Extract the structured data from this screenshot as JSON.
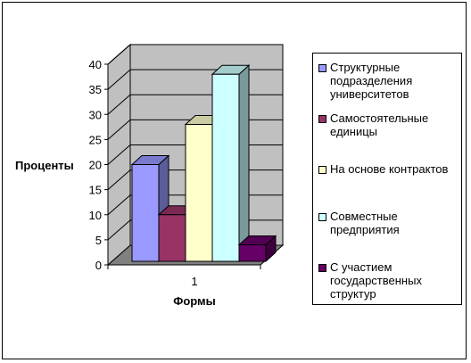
{
  "chart_data": {
    "type": "bar",
    "categories": [
      "1"
    ],
    "series": [
      {
        "name": "Структурные подразделения университетов",
        "values": [
          20
        ],
        "color": "#9999FF"
      },
      {
        "name": "Самостоятельные единицы",
        "values": [
          10
        ],
        "color": "#993366"
      },
      {
        "name": "На основе контрактов",
        "values": [
          28
        ],
        "color": "#FFFFCC"
      },
      {
        "name": "Совместные предприятия",
        "values": [
          38
        ],
        "color": "#CCFFFF"
      },
      {
        "name": "С участием государственных структур",
        "values": [
          4
        ],
        "color": "#660066"
      }
    ],
    "xlabel": "Формы",
    "ylabel": "Проценты",
    "ylim": [
      0,
      40
    ],
    "yticks": [
      "0",
      "5",
      "10",
      "15",
      "20",
      "25",
      "30",
      "35",
      "40"
    ],
    "grid": true,
    "legend": "right",
    "style": "3d-column",
    "wall_color": "#C0C0C0",
    "floor_color": "#808080"
  }
}
